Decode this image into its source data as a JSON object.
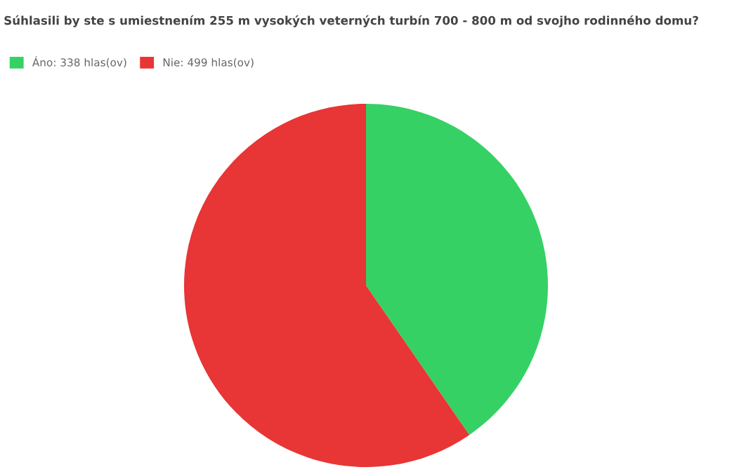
{
  "chart_data": {
    "type": "pie",
    "title": "Súhlasili by ste s umiestnením 255 m vysokých veterných turbín 700 - 800 m od svojho rodinného domu?",
    "categories": [
      "Áno",
      "Nie"
    ],
    "values": [
      338,
      499
    ],
    "value_labels": [
      "338 hlas(ov)",
      "499 hlas(ov)"
    ],
    "colors": [
      "#35d165",
      "#e83535"
    ],
    "legend": "top left"
  }
}
